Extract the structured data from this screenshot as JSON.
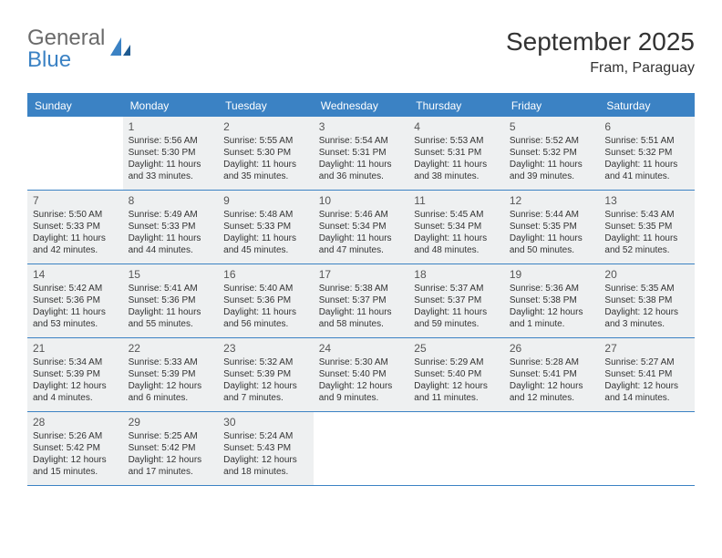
{
  "brand": {
    "line1": "General",
    "line2": "Blue"
  },
  "title": "September 2025",
  "location": "Fram, Paraguay",
  "colors": {
    "accent": "#3b82c4",
    "header_text": "#ffffff",
    "cell_bg": "#eef0f1",
    "text": "#333333",
    "logo_gray": "#6a6a6a"
  },
  "dow": [
    "Sunday",
    "Monday",
    "Tuesday",
    "Wednesday",
    "Thursday",
    "Friday",
    "Saturday"
  ],
  "weeks": [
    [
      null,
      {
        "d": "1",
        "sr": "Sunrise: 5:56 AM",
        "ss": "Sunset: 5:30 PM",
        "dl1": "Daylight: 11 hours",
        "dl2": "and 33 minutes."
      },
      {
        "d": "2",
        "sr": "Sunrise: 5:55 AM",
        "ss": "Sunset: 5:30 PM",
        "dl1": "Daylight: 11 hours",
        "dl2": "and 35 minutes."
      },
      {
        "d": "3",
        "sr": "Sunrise: 5:54 AM",
        "ss": "Sunset: 5:31 PM",
        "dl1": "Daylight: 11 hours",
        "dl2": "and 36 minutes."
      },
      {
        "d": "4",
        "sr": "Sunrise: 5:53 AM",
        "ss": "Sunset: 5:31 PM",
        "dl1": "Daylight: 11 hours",
        "dl2": "and 38 minutes."
      },
      {
        "d": "5",
        "sr": "Sunrise: 5:52 AM",
        "ss": "Sunset: 5:32 PM",
        "dl1": "Daylight: 11 hours",
        "dl2": "and 39 minutes."
      },
      {
        "d": "6",
        "sr": "Sunrise: 5:51 AM",
        "ss": "Sunset: 5:32 PM",
        "dl1": "Daylight: 11 hours",
        "dl2": "and 41 minutes."
      }
    ],
    [
      {
        "d": "7",
        "sr": "Sunrise: 5:50 AM",
        "ss": "Sunset: 5:33 PM",
        "dl1": "Daylight: 11 hours",
        "dl2": "and 42 minutes."
      },
      {
        "d": "8",
        "sr": "Sunrise: 5:49 AM",
        "ss": "Sunset: 5:33 PM",
        "dl1": "Daylight: 11 hours",
        "dl2": "and 44 minutes."
      },
      {
        "d": "9",
        "sr": "Sunrise: 5:48 AM",
        "ss": "Sunset: 5:33 PM",
        "dl1": "Daylight: 11 hours",
        "dl2": "and 45 minutes."
      },
      {
        "d": "10",
        "sr": "Sunrise: 5:46 AM",
        "ss": "Sunset: 5:34 PM",
        "dl1": "Daylight: 11 hours",
        "dl2": "and 47 minutes."
      },
      {
        "d": "11",
        "sr": "Sunrise: 5:45 AM",
        "ss": "Sunset: 5:34 PM",
        "dl1": "Daylight: 11 hours",
        "dl2": "and 48 minutes."
      },
      {
        "d": "12",
        "sr": "Sunrise: 5:44 AM",
        "ss": "Sunset: 5:35 PM",
        "dl1": "Daylight: 11 hours",
        "dl2": "and 50 minutes."
      },
      {
        "d": "13",
        "sr": "Sunrise: 5:43 AM",
        "ss": "Sunset: 5:35 PM",
        "dl1": "Daylight: 11 hours",
        "dl2": "and 52 minutes."
      }
    ],
    [
      {
        "d": "14",
        "sr": "Sunrise: 5:42 AM",
        "ss": "Sunset: 5:36 PM",
        "dl1": "Daylight: 11 hours",
        "dl2": "and 53 minutes."
      },
      {
        "d": "15",
        "sr": "Sunrise: 5:41 AM",
        "ss": "Sunset: 5:36 PM",
        "dl1": "Daylight: 11 hours",
        "dl2": "and 55 minutes."
      },
      {
        "d": "16",
        "sr": "Sunrise: 5:40 AM",
        "ss": "Sunset: 5:36 PM",
        "dl1": "Daylight: 11 hours",
        "dl2": "and 56 minutes."
      },
      {
        "d": "17",
        "sr": "Sunrise: 5:38 AM",
        "ss": "Sunset: 5:37 PM",
        "dl1": "Daylight: 11 hours",
        "dl2": "and 58 minutes."
      },
      {
        "d": "18",
        "sr": "Sunrise: 5:37 AM",
        "ss": "Sunset: 5:37 PM",
        "dl1": "Daylight: 11 hours",
        "dl2": "and 59 minutes."
      },
      {
        "d": "19",
        "sr": "Sunrise: 5:36 AM",
        "ss": "Sunset: 5:38 PM",
        "dl1": "Daylight: 12 hours",
        "dl2": "and 1 minute."
      },
      {
        "d": "20",
        "sr": "Sunrise: 5:35 AM",
        "ss": "Sunset: 5:38 PM",
        "dl1": "Daylight: 12 hours",
        "dl2": "and 3 minutes."
      }
    ],
    [
      {
        "d": "21",
        "sr": "Sunrise: 5:34 AM",
        "ss": "Sunset: 5:39 PM",
        "dl1": "Daylight: 12 hours",
        "dl2": "and 4 minutes."
      },
      {
        "d": "22",
        "sr": "Sunrise: 5:33 AM",
        "ss": "Sunset: 5:39 PM",
        "dl1": "Daylight: 12 hours",
        "dl2": "and 6 minutes."
      },
      {
        "d": "23",
        "sr": "Sunrise: 5:32 AM",
        "ss": "Sunset: 5:39 PM",
        "dl1": "Daylight: 12 hours",
        "dl2": "and 7 minutes."
      },
      {
        "d": "24",
        "sr": "Sunrise: 5:30 AM",
        "ss": "Sunset: 5:40 PM",
        "dl1": "Daylight: 12 hours",
        "dl2": "and 9 minutes."
      },
      {
        "d": "25",
        "sr": "Sunrise: 5:29 AM",
        "ss": "Sunset: 5:40 PM",
        "dl1": "Daylight: 12 hours",
        "dl2": "and 11 minutes."
      },
      {
        "d": "26",
        "sr": "Sunrise: 5:28 AM",
        "ss": "Sunset: 5:41 PM",
        "dl1": "Daylight: 12 hours",
        "dl2": "and 12 minutes."
      },
      {
        "d": "27",
        "sr": "Sunrise: 5:27 AM",
        "ss": "Sunset: 5:41 PM",
        "dl1": "Daylight: 12 hours",
        "dl2": "and 14 minutes."
      }
    ],
    [
      {
        "d": "28",
        "sr": "Sunrise: 5:26 AM",
        "ss": "Sunset: 5:42 PM",
        "dl1": "Daylight: 12 hours",
        "dl2": "and 15 minutes."
      },
      {
        "d": "29",
        "sr": "Sunrise: 5:25 AM",
        "ss": "Sunset: 5:42 PM",
        "dl1": "Daylight: 12 hours",
        "dl2": "and 17 minutes."
      },
      {
        "d": "30",
        "sr": "Sunrise: 5:24 AM",
        "ss": "Sunset: 5:43 PM",
        "dl1": "Daylight: 12 hours",
        "dl2": "and 18 minutes."
      },
      null,
      null,
      null,
      null
    ]
  ]
}
